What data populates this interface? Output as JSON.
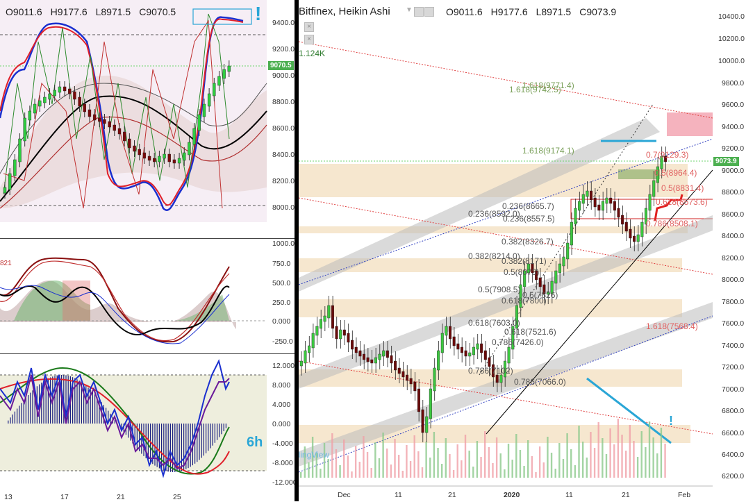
{
  "left": {
    "ohlc": {
      "o": "O9011.6",
      "h": "H9177.6",
      "l": "L8971.5",
      "c": "C9070.5"
    },
    "exclamation": "!",
    "price_ticks": [
      "9400.0",
      "9200.0",
      "9000.0",
      "8800.0",
      "8600.0",
      "8400.0",
      "8200.0",
      "8000.0"
    ],
    "price_last": "9070.5",
    "rsi_ticks": [
      "1000.0",
      "750.0",
      "500.0",
      "250.0",
      "0.000",
      "-250.0"
    ],
    "rsi_left_value": "821",
    "macd_ticks": [
      "12.000",
      "8.000",
      "4.000",
      "0.000",
      "-4.000",
      "-8.000",
      "-12.000"
    ],
    "timeframe": "6h",
    "date_ticks": [
      "13",
      "17",
      "21",
      "25"
    ]
  },
  "right": {
    "symbol": "Bitfinex, Heikin Ashi",
    "ohlc": {
      "o": "O9011.6",
      "h": "H9177.6",
      "l": "L8971.5",
      "c": "C9073.9"
    },
    "volume": "1.124K",
    "watermark": "TradingView",
    "price_ticks": [
      "10400.0",
      "10200.0",
      "10000.0",
      "9800.0",
      "9600.0",
      "9400.0",
      "9200.0",
      "9000.0",
      "8800.0",
      "8600.0",
      "8400.0",
      "8200.0",
      "8000.0",
      "7800.0",
      "7600.0",
      "7400.0",
      "7200.0",
      "7000.0",
      "6800.0",
      "6600.0",
      "6400.0",
      "6200.0"
    ],
    "price_last": "9073.9",
    "date_ticks": [
      "Dec",
      "11",
      "21",
      "2020",
      "11",
      "21",
      "Feb"
    ],
    "fib_labels": [
      {
        "t": "1.618(9771.4)",
        "c": "#7aa05a"
      },
      {
        "t": "1.618(9742.5)",
        "c": "#7aa05a"
      },
      {
        "t": "1.618(9174.1)",
        "c": "#7aa05a"
      },
      {
        "t": "0.7(9129.3)",
        "c": "#e06060"
      },
      {
        "t": "0.5(8964.4)",
        "c": "#e06060"
      },
      {
        "t": "0.5(8831.4)",
        "c": "#e06060"
      },
      {
        "t": "0.618(8573.6)",
        "c": "#e06060"
      },
      {
        "t": "0.236(8665.7)",
        "c": "#555"
      },
      {
        "t": "0.236(8592.0)",
        "c": "#555"
      },
      {
        "t": "0.236(8557.5)",
        "c": "#555"
      },
      {
        "t": "0.786(8508.1)",
        "c": "#e06060"
      },
      {
        "t": "0.382(8326.7)",
        "c": "#555"
      },
      {
        "t": "0.382(8214.0)",
        "c": "#555"
      },
      {
        "t": "0.382(8171)",
        "c": "#555"
      },
      {
        "t": "0.5(8073)",
        "c": "#555"
      },
      {
        "t": "0.5(7908.5)",
        "c": "#555"
      },
      {
        "t": "0.5(7826)",
        "c": "#555"
      },
      {
        "t": "0.618(7800)",
        "c": "#555"
      },
      {
        "t": "0.618(7603.0)",
        "c": "#555"
      },
      {
        "t": "1.618(7568.4)",
        "c": "#e06060"
      },
      {
        "t": "0.618(7521.6)",
        "c": "#555"
      },
      {
        "t": "0.786(7426.0)",
        "c": "#555"
      },
      {
        "t": "0.786(7102)",
        "c": "#555"
      },
      {
        "t": "0.786(7066.0)",
        "c": "#555"
      }
    ]
  }
}
